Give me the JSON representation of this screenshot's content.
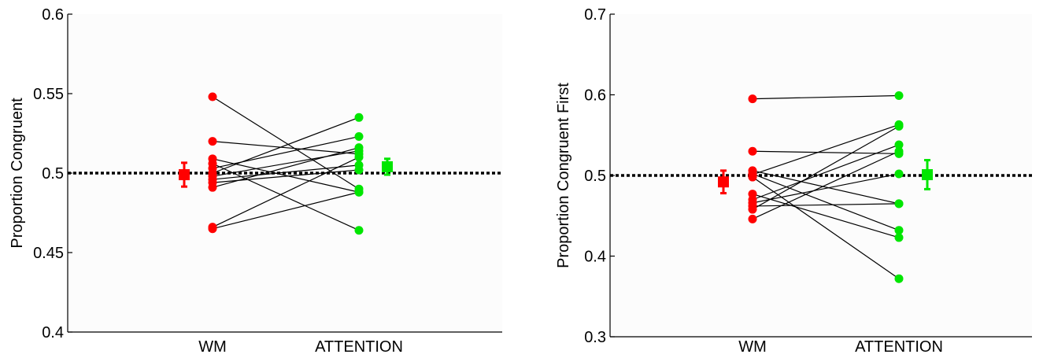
{
  "chart_data": [
    {
      "type": "scatter",
      "ylabel": "Proportion Congruent",
      "xlabel": "",
      "categories": [
        "WM",
        "ATTENTION"
      ],
      "ylim": [
        0.4,
        0.6
      ],
      "yticks": [
        "0.4",
        "0.45",
        "0.5",
        "0.55",
        "0.6"
      ],
      "reference_line": 0.5,
      "colors": {
        "WM": "#ff0000",
        "ATTENTION": "#00e600",
        "lines": "#000000"
      },
      "pairs": [
        [
          0.548,
          0.49
        ],
        [
          0.52,
          0.512
        ],
        [
          0.509,
          0.488
        ],
        [
          0.506,
          0.464
        ],
        [
          0.503,
          0.523
        ],
        [
          0.5,
          0.535
        ],
        [
          0.498,
          0.514
        ],
        [
          0.496,
          0.505
        ],
        [
          0.494,
          0.502
        ],
        [
          0.491,
          0.516
        ],
        [
          0.466,
          0.51
        ],
        [
          0.465,
          0.488
        ]
      ],
      "means": {
        "WM": {
          "mean": 0.499,
          "err": 0.0075
        },
        "ATTENTION": {
          "mean": 0.504,
          "err": 0.005
        }
      }
    },
    {
      "type": "scatter",
      "ylabel": "Proportion Congruent First",
      "xlabel": "",
      "categories": [
        "WM",
        "ATTENTION"
      ],
      "ylim": [
        0.3,
        0.7
      ],
      "yticks": [
        "0.3",
        "0.4",
        "0.5",
        "0.6",
        "0.7"
      ],
      "reference_line": 0.5,
      "colors": {
        "WM": "#ff0000",
        "ATTENTION": "#00e600",
        "lines": "#000000"
      },
      "pairs": [
        [
          0.595,
          0.599
        ],
        [
          0.53,
          0.527
        ],
        [
          0.506,
          0.465
        ],
        [
          0.502,
          0.432
        ],
        [
          0.501,
          0.563
        ],
        [
          0.498,
          0.372
        ],
        [
          0.477,
          0.423
        ],
        [
          0.47,
          0.538
        ],
        [
          0.466,
          0.502
        ],
        [
          0.462,
          0.465
        ],
        [
          0.458,
          0.561
        ],
        [
          0.446,
          0.53
        ]
      ],
      "means": {
        "WM": {
          "mean": 0.492,
          "err": 0.014
        },
        "ATTENTION": {
          "mean": 0.501,
          "err": 0.018
        }
      }
    }
  ]
}
